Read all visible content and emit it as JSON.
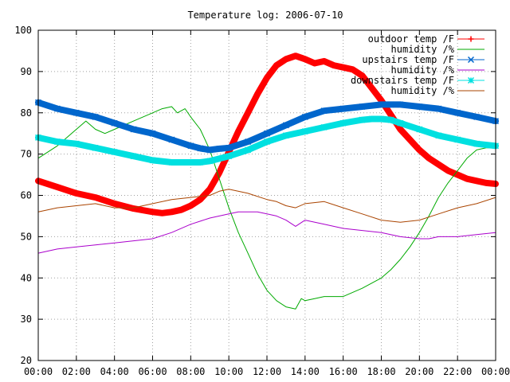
{
  "chart_data": {
    "type": "line",
    "title": "Temperature log: 2006-07-10",
    "xlabel": "",
    "ylabel": "",
    "xlim": [
      0,
      24
    ],
    "ylim": [
      20,
      100
    ],
    "x_ticks": [
      "00:00",
      "02:00",
      "04:00",
      "06:00",
      "08:00",
      "10:00",
      "12:00",
      "14:00",
      "16:00",
      "18:00",
      "20:00",
      "22:00",
      "00:00"
    ],
    "y_ticks": [
      "20",
      "30",
      "40",
      "50",
      "60",
      "70",
      "80",
      "90",
      "100"
    ],
    "grid": true,
    "legend_position": "top-right",
    "series": [
      {
        "name": "outdoor temp /F",
        "color": "#ff0000",
        "marker": "plus",
        "x": [
          0,
          1,
          2,
          3,
          4,
          5,
          6,
          6.5,
          7,
          7.5,
          8,
          8.5,
          9,
          9.5,
          10,
          10.5,
          11,
          11.5,
          12,
          12.5,
          13,
          13.5,
          14,
          14.5,
          15,
          15.5,
          16,
          16.5,
          17,
          17.5,
          18,
          18.5,
          19,
          19.5,
          20,
          20.5,
          21,
          21.5,
          22,
          22.5,
          23,
          23.5,
          24
        ],
        "y": [
          63.5,
          62,
          60.5,
          59.5,
          58,
          56.8,
          56,
          55.7,
          56,
          56.5,
          57.5,
          59,
          61.5,
          65.5,
          70.5,
          75.5,
          80,
          84.5,
          88.5,
          91.5,
          93,
          93.8,
          93,
          92,
          92.5,
          91.5,
          91,
          90.5,
          89,
          86,
          83,
          79.5,
          76,
          73.5,
          71,
          69,
          67.5,
          66,
          65,
          64,
          63.5,
          63,
          62.8
        ]
      },
      {
        "name": "humidity /%",
        "color": "#00aa00",
        "marker": "none",
        "x": [
          0,
          1,
          2,
          2.5,
          3,
          3.5,
          4,
          5,
          6,
          6.5,
          7,
          7.3,
          7.7,
          8,
          8.5,
          9,
          9.5,
          10,
          10.5,
          11,
          11.5,
          12,
          12.5,
          13,
          13.5,
          13.8,
          14,
          14.5,
          15,
          15.5,
          16,
          17,
          18,
          18.5,
          19,
          19.5,
          20,
          20.5,
          21,
          21.5,
          22,
          22.5,
          23,
          23.5,
          24
        ],
        "y": [
          69,
          72,
          76,
          78,
          76,
          75,
          76,
          78,
          80,
          81,
          81.5,
          80,
          81,
          79,
          76,
          71,
          64,
          57,
          51,
          46,
          41,
          37,
          34.5,
          33,
          32.5,
          35,
          34.5,
          35,
          35.5,
          35.5,
          35.5,
          37.5,
          40,
          42,
          44.5,
          47.5,
          51,
          55,
          59.5,
          63,
          66,
          69,
          71,
          71.5,
          71.5
        ]
      },
      {
        "name": "upstairs temp /F",
        "color": "#0066cc",
        "marker": "x",
        "x": [
          0,
          1,
          2,
          3,
          4,
          5,
          6,
          7,
          8,
          8.5,
          9,
          9.5,
          10,
          11,
          12,
          13,
          14,
          15,
          16,
          17,
          18,
          18.5,
          19,
          20,
          21,
          22,
          23,
          24
        ],
        "y": [
          82.5,
          81,
          80,
          79,
          77.5,
          76,
          75,
          73.5,
          72,
          71.4,
          71,
          71.3,
          71.5,
          73,
          75,
          77,
          79,
          80.5,
          81,
          81.5,
          82,
          82,
          82,
          81.5,
          81,
          80,
          79,
          78
        ]
      },
      {
        "name": "humidity /%",
        "color": "#aa00cc",
        "marker": "none",
        "x": [
          0,
          1,
          2,
          3,
          4,
          5,
          6,
          7,
          8,
          9,
          10,
          10.5,
          11,
          11.5,
          12,
          12.5,
          13,
          13.5,
          14,
          15,
          16,
          17,
          18,
          19,
          20,
          20.5,
          21,
          22,
          23,
          24
        ],
        "y": [
          46,
          47,
          47.5,
          48,
          48.5,
          49,
          49.5,
          51,
          53,
          54.5,
          55.5,
          56,
          56,
          56,
          55.5,
          55,
          54,
          52.5,
          54,
          53,
          52,
          51.5,
          51,
          50,
          49.5,
          49.5,
          50,
          50,
          50.5,
          51
        ]
      },
      {
        "name": "downstairs temp /F",
        "color": "#00e0e0",
        "marker": "star",
        "x": [
          0,
          1,
          2,
          3,
          4,
          5,
          6,
          7,
          8,
          8.5,
          9,
          10,
          11,
          12,
          13,
          14,
          15,
          16,
          17,
          17.5,
          18,
          18.5,
          19,
          20,
          21,
          22,
          23,
          24
        ],
        "y": [
          74,
          73,
          72.5,
          71.5,
          70.5,
          69.5,
          68.5,
          68,
          68,
          68,
          68.3,
          69.5,
          71,
          73,
          74.5,
          75.5,
          76.5,
          77.5,
          78.3,
          78.5,
          78.5,
          78.3,
          77.5,
          76,
          74.5,
          73.5,
          72.5,
          72
        ]
      },
      {
        "name": "humidity /%",
        "color": "#aa4400",
        "marker": "none",
        "x": [
          0,
          1,
          2,
          3,
          4,
          5,
          6,
          7,
          8,
          9,
          9.5,
          10,
          11,
          12,
          12.5,
          13,
          13.5,
          14,
          15,
          16,
          17,
          18,
          19,
          20,
          21,
          22,
          23,
          24
        ],
        "y": [
          56,
          57,
          57.5,
          58,
          57,
          57,
          58,
          59,
          59.5,
          60,
          61,
          61.5,
          60.5,
          59,
          58.5,
          57.5,
          57,
          58,
          58.5,
          57,
          55.5,
          54,
          53.5,
          54,
          55.5,
          57,
          58,
          59.5
        ]
      }
    ]
  }
}
